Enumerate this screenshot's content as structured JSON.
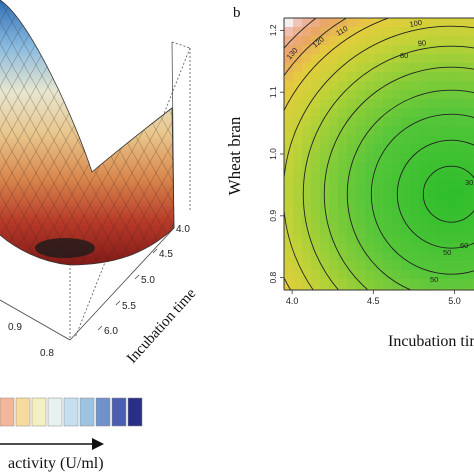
{
  "chart_data": [
    {
      "type": "surface",
      "panel_label": "",
      "axis_labels": {
        "y": "Incubation time"
      },
      "y_ticks": [
        "4.0",
        "4.5",
        "5.0",
        "5.5",
        "6.0"
      ],
      "x_ticks": [
        "0.9",
        "0.8"
      ],
      "legend": {
        "label": "activity (U/ml)",
        "colors": [
          "#f2b79a",
          "#f6dba0",
          "#f3f0c2",
          "#e8f1f2",
          "#c6dff0",
          "#9cc3e2",
          "#6f93c9",
          "#4c5fae",
          "#2a2f86"
        ]
      }
    },
    {
      "type": "heatmap",
      "panel_label": "b",
      "xlabel": "Incubation time",
      "ylabel": "Wheat bran",
      "x_ticks": [
        "4.0",
        "4.5",
        "5.0"
      ],
      "y_ticks": [
        "0.8",
        "0.9",
        "1.0",
        "1.1",
        "1.2"
      ],
      "xlim": [
        3.95,
        5.12
      ],
      "ylim": [
        0.78,
        1.22
      ],
      "center": {
        "x": 4.98,
        "y": 0.935
      },
      "contour_labels": [
        "130",
        "120",
        "110",
        "100",
        "90",
        "80",
        "60",
        "50",
        "50",
        "30"
      ]
    }
  ]
}
